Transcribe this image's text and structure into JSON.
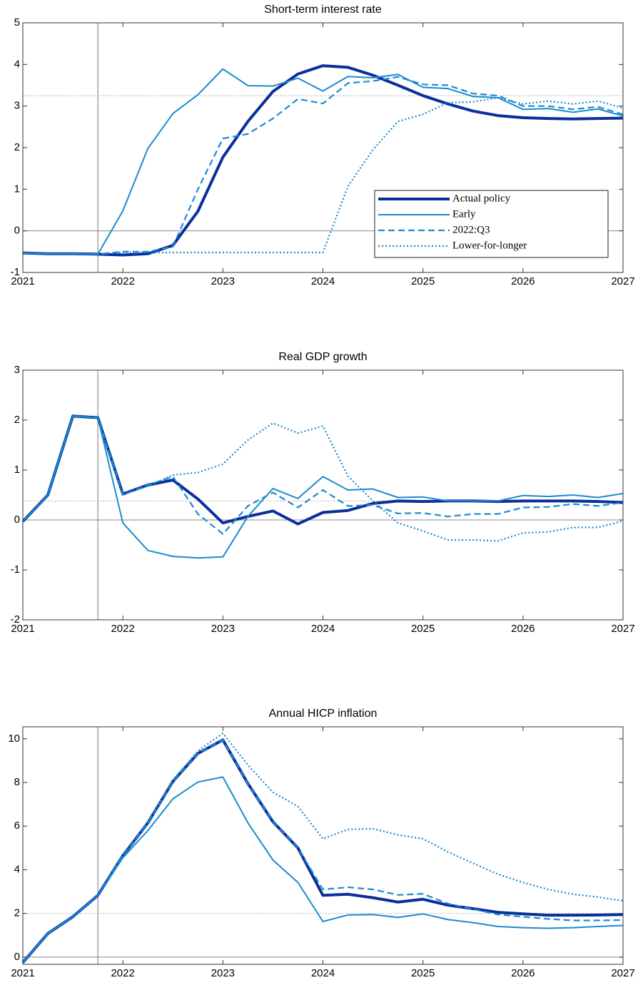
{
  "chart_data": [
    {
      "type": "line",
      "title": "Short-term interest rate",
      "x": [
        2021,
        2021.25,
        2021.5,
        2021.75,
        2022,
        2022.25,
        2022.5,
        2022.75,
        2023,
        2023.25,
        2023.5,
        2023.75,
        2024,
        2024.25,
        2024.5,
        2024.75,
        2025,
        2025.25,
        2025.5,
        2025.75,
        2026,
        2026.25,
        2026.5,
        2026.75,
        2027
      ],
      "xlim": [
        2021,
        2027
      ],
      "xticks": [
        2021,
        2022,
        2023,
        2024,
        2025,
        2026,
        2027
      ],
      "ylim": [
        -1,
        5
      ],
      "yticks": [
        -1,
        0,
        1,
        2,
        3,
        4,
        5
      ],
      "vline": 2021.75,
      "hline": 3.25,
      "legend": "lower right",
      "series": [
        {
          "name": "Actual policy",
          "color": "#0a2f9b",
          "style": "thick",
          "values": [
            -0.53,
            -0.55,
            -0.55,
            -0.56,
            -0.58,
            -0.55,
            -0.35,
            0.47,
            1.77,
            2.63,
            3.35,
            3.77,
            3.97,
            3.93,
            3.74,
            3.5,
            3.25,
            3.05,
            2.88,
            2.77,
            2.72,
            2.7,
            2.69,
            2.7,
            2.71
          ]
        },
        {
          "name": "Early",
          "color": "#1a8bd0",
          "style": "solid",
          "values": [
            -0.53,
            -0.55,
            -0.55,
            -0.56,
            0.48,
            1.98,
            2.82,
            3.27,
            3.89,
            3.49,
            3.48,
            3.67,
            3.36,
            3.71,
            3.68,
            3.76,
            3.45,
            3.42,
            3.23,
            3.2,
            2.92,
            2.94,
            2.85,
            2.93,
            2.76
          ]
        },
        {
          "name": "2022:Q3",
          "color": "#1a8bd0",
          "style": "dashed",
          "values": [
            -0.53,
            -0.55,
            -0.55,
            -0.56,
            -0.5,
            -0.5,
            -0.38,
            1.0,
            2.22,
            2.33,
            2.7,
            3.17,
            3.06,
            3.55,
            3.6,
            3.7,
            3.52,
            3.5,
            3.3,
            3.25,
            3.0,
            3.0,
            2.92,
            2.98,
            2.8
          ]
        },
        {
          "name": "Lower-for-longer",
          "color": "#1a8bd0",
          "style": "dotted",
          "values": [
            -0.53,
            -0.55,
            -0.55,
            -0.56,
            -0.52,
            -0.52,
            -0.52,
            -0.52,
            -0.52,
            -0.52,
            -0.52,
            -0.52,
            -0.52,
            1.07,
            1.95,
            2.63,
            2.8,
            3.08,
            3.1,
            3.2,
            3.05,
            3.12,
            3.05,
            3.12,
            2.95
          ]
        }
      ]
    },
    {
      "type": "line",
      "title": "Real GDP growth",
      "x": [
        2021,
        2021.25,
        2021.5,
        2021.75,
        2022,
        2022.25,
        2022.5,
        2022.75,
        2023,
        2023.25,
        2023.5,
        2023.75,
        2024,
        2024.25,
        2024.5,
        2024.75,
        2025,
        2025.25,
        2025.5,
        2025.75,
        2026,
        2026.25,
        2026.5,
        2026.75,
        2027
      ],
      "xlim": [
        2021,
        2027
      ],
      "xticks": [
        2021,
        2022,
        2023,
        2024,
        2025,
        2026,
        2027
      ],
      "ylim": [
        -2,
        3
      ],
      "yticks": [
        -2,
        -1,
        0,
        1,
        2,
        3
      ],
      "vline": 2021.75,
      "hline": 0.38,
      "series": [
        {
          "color": "#0a2f9b",
          "style": "thick",
          "values": [
            -0.03,
            0.5,
            2.08,
            2.05,
            0.52,
            0.7,
            0.8,
            0.42,
            -0.06,
            0.07,
            0.18,
            -0.08,
            0.15,
            0.19,
            0.33,
            0.38,
            0.37,
            0.38,
            0.38,
            0.37,
            0.38,
            0.38,
            0.38,
            0.37,
            0.35
          ]
        },
        {
          "color": "#1a8bd0",
          "style": "solid",
          "values": [
            -0.03,
            0.5,
            2.08,
            2.05,
            -0.06,
            -0.61,
            -0.73,
            -0.76,
            -0.74,
            0.07,
            0.63,
            0.43,
            0.87,
            0.6,
            0.62,
            0.45,
            0.46,
            0.38,
            0.38,
            0.38,
            0.49,
            0.47,
            0.5,
            0.45,
            0.53
          ]
        },
        {
          "color": "#1a8bd0",
          "style": "dashed",
          "values": [
            -0.03,
            0.5,
            2.08,
            2.05,
            0.5,
            0.7,
            0.87,
            0.12,
            -0.28,
            0.28,
            0.55,
            0.25,
            0.6,
            0.28,
            0.3,
            0.13,
            0.14,
            0.07,
            0.12,
            0.12,
            0.25,
            0.26,
            0.32,
            0.28,
            0.35
          ]
        },
        {
          "color": "#1a8bd0",
          "style": "dotted",
          "values": [
            -0.03,
            0.5,
            2.08,
            2.05,
            0.52,
            0.68,
            0.9,
            0.95,
            1.12,
            1.6,
            1.94,
            1.74,
            1.88,
            0.88,
            0.38,
            -0.06,
            -0.22,
            -0.4,
            -0.4,
            -0.42,
            -0.26,
            -0.24,
            -0.15,
            -0.15,
            -0.02
          ]
        }
      ]
    },
    {
      "type": "line",
      "title": "Annual HICP inflation",
      "x": [
        2021,
        2021.25,
        2021.5,
        2021.75,
        2022,
        2022.25,
        2022.5,
        2022.75,
        2023,
        2023.25,
        2023.5,
        2023.75,
        2024,
        2024.25,
        2024.5,
        2024.75,
        2025,
        2025.25,
        2025.5,
        2025.75,
        2026,
        2026.25,
        2026.5,
        2026.75,
        2027
      ],
      "xlim": [
        2021,
        2027
      ],
      "xticks": [
        2021,
        2022,
        2023,
        2024,
        2025,
        2026,
        2027
      ],
      "ylim": [
        -0.33,
        10.55
      ],
      "yticks": [
        0,
        2,
        4,
        6,
        8,
        10
      ],
      "vline": 2021.75,
      "hline": 2,
      "series": [
        {
          "color": "#0a2f9b",
          "style": "thick",
          "values": [
            -0.25,
            1.08,
            1.85,
            2.83,
            4.65,
            6.15,
            8.05,
            9.33,
            9.95,
            7.95,
            6.2,
            5.0,
            2.83,
            2.88,
            2.72,
            2.52,
            2.65,
            2.38,
            2.22,
            2.05,
            1.98,
            1.92,
            1.92,
            1.93,
            1.95
          ]
        },
        {
          "color": "#1a8bd0",
          "style": "solid",
          "values": [
            -0.25,
            1.08,
            1.85,
            2.83,
            4.55,
            5.8,
            7.25,
            8.02,
            8.25,
            6.15,
            4.45,
            3.42,
            1.63,
            1.93,
            1.95,
            1.82,
            1.98,
            1.72,
            1.58,
            1.4,
            1.35,
            1.32,
            1.35,
            1.4,
            1.45
          ]
        },
        {
          "color": "#1a8bd0",
          "style": "dashed",
          "values": [
            -0.25,
            1.08,
            1.85,
            2.83,
            4.65,
            6.15,
            8.05,
            9.33,
            9.95,
            7.95,
            6.2,
            5.0,
            3.1,
            3.2,
            3.1,
            2.85,
            2.9,
            2.45,
            2.2,
            1.95,
            1.85,
            1.75,
            1.68,
            1.68,
            1.7
          ]
        },
        {
          "color": "#1a8bd0",
          "style": "dotted",
          "values": [
            -0.25,
            1.08,
            1.85,
            2.83,
            4.65,
            6.15,
            8.1,
            9.45,
            10.25,
            8.8,
            7.55,
            6.9,
            5.42,
            5.85,
            5.88,
            5.6,
            5.42,
            4.82,
            4.3,
            3.8,
            3.42,
            3.1,
            2.88,
            2.75,
            2.58
          ]
        }
      ]
    }
  ]
}
